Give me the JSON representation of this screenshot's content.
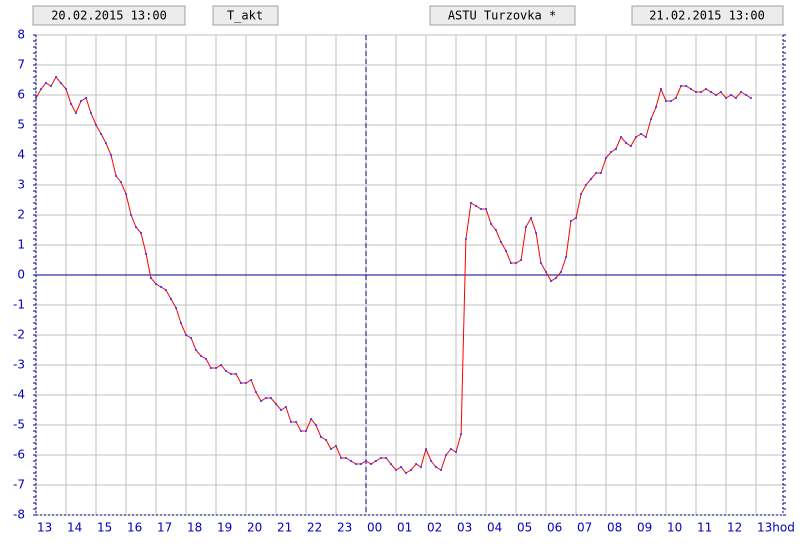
{
  "chart_data": {
    "type": "line",
    "title": "ASTU Turzovka *",
    "date_from": "20.02.2015 13:00",
    "date_to": "21.02.2015 13:00",
    "series": [
      {
        "name": "T_akt",
        "color": "#ff0000",
        "marker_color": "#4040ff",
        "values": [
          5.9,
          6.2,
          6.4,
          6.3,
          6.6,
          6.4,
          6.2,
          5.7,
          5.4,
          5.8,
          5.9,
          5.4,
          5.0,
          4.7,
          4.4,
          4.0,
          3.3,
          3.1,
          2.7,
          2.0,
          1.6,
          1.4,
          0.7,
          -0.1,
          -0.3,
          -0.4,
          -0.5,
          -0.8,
          -1.1,
          -1.6,
          -2.0,
          -2.1,
          -2.5,
          -2.7,
          -2.8,
          -3.1,
          -3.1,
          -3.0,
          -3.2,
          -3.3,
          -3.3,
          -3.6,
          -3.6,
          -3.5,
          -3.9,
          -4.2,
          -4.1,
          -4.1,
          -4.3,
          -4.5,
          -4.4,
          -4.9,
          -4.9,
          -5.2,
          -5.2,
          -4.8,
          -5.0,
          -5.4,
          -5.5,
          -5.8,
          -5.7,
          -6.1,
          -6.1,
          -6.2,
          -6.3,
          -6.3,
          -6.2,
          -6.3,
          -6.2,
          -6.1,
          -6.1,
          -6.3,
          -6.5,
          -6.4,
          -6.6,
          -6.5,
          -6.3,
          -6.4,
          -5.8,
          -6.2,
          -6.4,
          -6.5,
          -6.0,
          -5.8,
          -5.9,
          -5.3,
          1.2,
          2.4,
          2.3,
          2.2,
          2.2,
          1.7,
          1.5,
          1.1,
          0.8,
          0.4,
          0.4,
          0.5,
          1.6,
          1.9,
          1.4,
          0.4,
          0.1,
          -0.2,
          -0.1,
          0.1,
          0.6,
          1.8,
          1.9,
          2.7,
          3.0,
          3.2,
          3.4,
          3.4,
          3.9,
          4.1,
          4.2,
          4.6,
          4.4,
          4.3,
          4.6,
          4.7,
          4.6,
          5.2,
          5.6,
          6.2,
          5.8,
          5.8,
          5.9,
          6.3,
          6.3,
          6.2,
          6.1,
          6.1,
          6.2,
          6.1,
          6.0,
          6.1,
          5.9,
          6.0,
          5.9,
          6.1,
          6.0,
          5.9
        ]
      }
    ],
    "x": [
      0,
      0.17,
      0.33,
      0.5,
      0.67,
      0.83,
      1,
      1.17,
      1.33,
      1.5,
      1.67,
      1.83,
      2,
      2.17,
      2.33,
      2.5,
      2.67,
      2.83,
      3,
      3.17,
      3.33,
      3.5,
      3.67,
      3.83,
      4,
      4.17,
      4.33,
      4.5,
      4.67,
      4.83,
      5,
      5.17,
      5.33,
      5.5,
      5.67,
      5.83,
      6,
      6.17,
      6.33,
      6.5,
      6.67,
      6.83,
      7,
      7.17,
      7.33,
      7.5,
      7.67,
      7.83,
      8,
      8.17,
      8.33,
      8.5,
      8.67,
      8.83,
      9,
      9.17,
      9.33,
      9.5,
      9.67,
      9.83,
      10,
      10.17,
      10.33,
      10.5,
      10.67,
      10.83,
      11,
      11.17,
      11.33,
      11.5,
      11.67,
      11.83,
      12,
      12.17,
      12.33,
      12.5,
      12.67,
      12.83,
      13,
      13.17,
      13.33,
      13.5,
      13.67,
      13.83,
      14,
      14.17,
      14.33,
      14.5,
      14.67,
      14.83,
      15,
      15.17,
      15.33,
      15.5,
      15.67,
      15.83,
      16,
      16.17,
      16.33,
      16.5,
      16.67,
      16.83,
      17,
      17.17,
      17.33,
      17.5,
      17.67,
      17.83,
      18,
      18.17,
      18.33,
      18.5,
      18.67,
      18.83,
      19,
      19.17,
      19.33,
      19.5,
      19.67,
      19.83,
      20,
      20.17,
      20.33,
      20.5,
      20.67,
      20.83,
      21,
      21.17,
      21.33,
      21.5,
      21.67,
      21.83,
      22,
      22.17,
      22.33,
      22.5,
      22.67,
      22.83,
      23,
      23.17,
      23.33,
      23.5,
      23.67,
      23.83
    ],
    "xlim": [
      0,
      24.9
    ],
    "xticks": [
      {
        "value": 0,
        "label": "13"
      },
      {
        "value": 1,
        "label": "14"
      },
      {
        "value": 2,
        "label": "15"
      },
      {
        "value": 3,
        "label": "16"
      },
      {
        "value": 4,
        "label": "17"
      },
      {
        "value": 5,
        "label": "18"
      },
      {
        "value": 6,
        "label": "19"
      },
      {
        "value": 7,
        "label": "20"
      },
      {
        "value": 8,
        "label": "21"
      },
      {
        "value": 9,
        "label": "22"
      },
      {
        "value": 10,
        "label": "23"
      },
      {
        "value": 11,
        "label": "00"
      },
      {
        "value": 12,
        "label": "01"
      },
      {
        "value": 13,
        "label": "02"
      },
      {
        "value": 14,
        "label": "03"
      },
      {
        "value": 15,
        "label": "04"
      },
      {
        "value": 16,
        "label": "05"
      },
      {
        "value": 17,
        "label": "06"
      },
      {
        "value": 18,
        "label": "07"
      },
      {
        "value": 19,
        "label": "08"
      },
      {
        "value": 20,
        "label": "09"
      },
      {
        "value": 21,
        "label": "10"
      },
      {
        "value": 22,
        "label": "11"
      },
      {
        "value": 23,
        "label": "12"
      },
      {
        "value": 24,
        "label": "13hod"
      }
    ],
    "day_boundary": 11,
    "ylim": [
      -8,
      8
    ],
    "yticks": [
      -8,
      -7,
      -6,
      -5,
      -4,
      -3,
      -2,
      -1,
      0,
      1,
      2,
      3,
      4,
      5,
      6,
      7,
      8
    ],
    "grid": true
  }
}
